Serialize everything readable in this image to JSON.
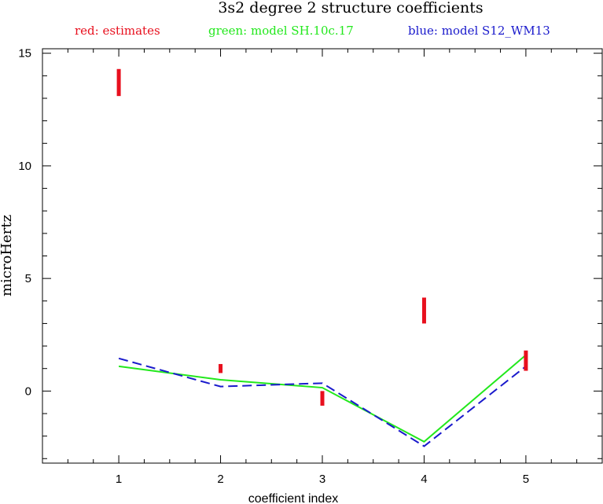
{
  "chart_data": {
    "type": "line",
    "title": "3s2 degree 2 structure coefficients",
    "legend": [
      {
        "label": "red: estimates",
        "color": "#e8101e"
      },
      {
        "label": "green: model SH.10c.17",
        "color": "#22e81c"
      },
      {
        "label": "blue: model S12_WM13",
        "color": "#1a1acc"
      }
    ],
    "xlabel": "coefficient index",
    "ylabel": "microHertz",
    "xlim": [
      0.25,
      5.75
    ],
    "ylim": [
      -3.2,
      15.2
    ],
    "xticks": [
      1,
      2,
      3,
      4,
      5
    ],
    "yticks": [
      0,
      5,
      10,
      15
    ],
    "x_minor_step": 0.25,
    "y_minor_step": 1,
    "x_tick_labels": [
      "1",
      "2",
      "3",
      "4",
      "5"
    ],
    "y_tick_labels": [
      "0",
      "5",
      "10",
      "15"
    ],
    "estimates": {
      "name": "estimates",
      "color": "#e8101e",
      "x": [
        1,
        2,
        3,
        4,
        5
      ],
      "low": [
        13.1,
        0.8,
        -0.65,
        3.0,
        0.9
      ],
      "high": [
        14.3,
        1.2,
        0.0,
        4.15,
        1.8
      ]
    },
    "series": [
      {
        "name": "model SH.10c.17",
        "color": "#22e81c",
        "dash": "solid",
        "x": [
          1,
          2,
          3,
          4,
          5
        ],
        "values": [
          1.1,
          0.5,
          0.15,
          -2.25,
          1.6
        ]
      },
      {
        "name": "model S12_WM13",
        "color": "#1a1acc",
        "dash": "dashed",
        "x": [
          1,
          2,
          3,
          4,
          5
        ],
        "values": [
          1.45,
          0.2,
          0.35,
          -2.45,
          1.1
        ]
      }
    ]
  }
}
